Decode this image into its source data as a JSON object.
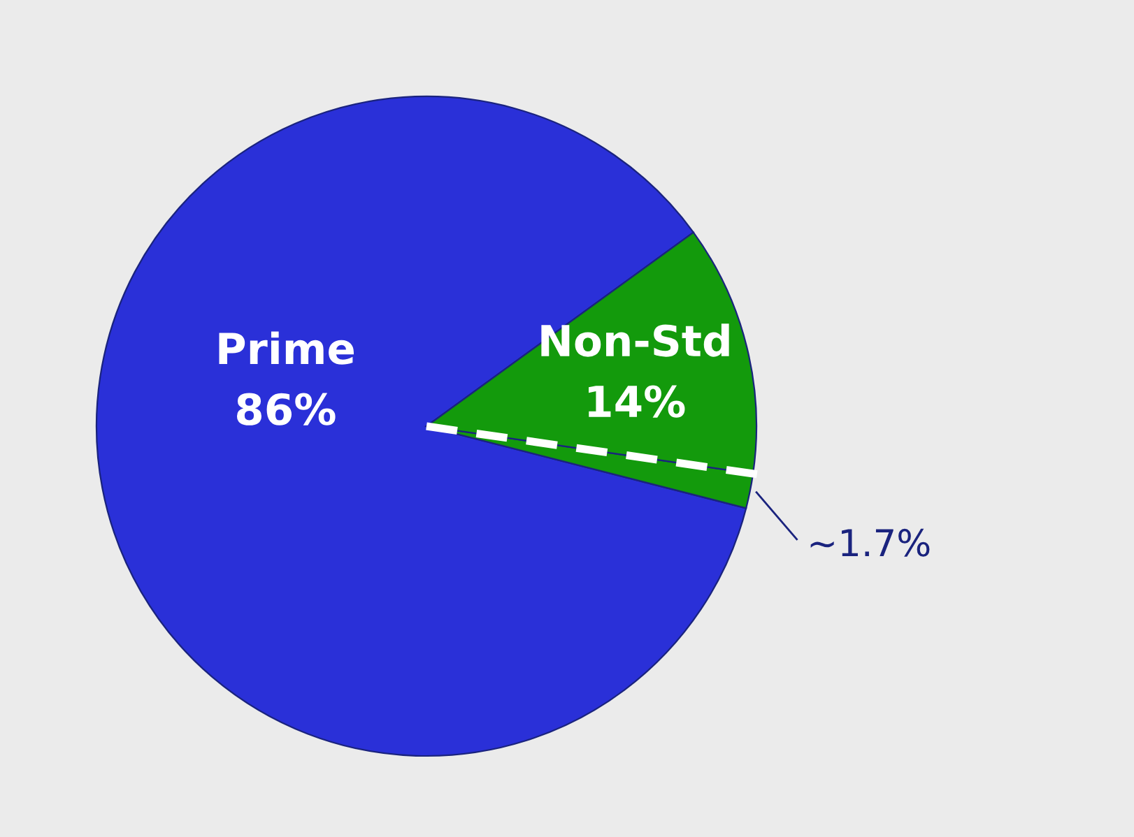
{
  "chart_data": {
    "type": "pie",
    "categories": [
      "Prime",
      null,
      "Non-Std"
    ],
    "values": [
      86,
      1.7,
      12.3
    ],
    "colors": [
      "#2a30d8",
      "#139a0c",
      "#139a0c"
    ],
    "annotations": [
      "86%",
      "~1.7%",
      "14%"
    ],
    "legend": false
  }
}
